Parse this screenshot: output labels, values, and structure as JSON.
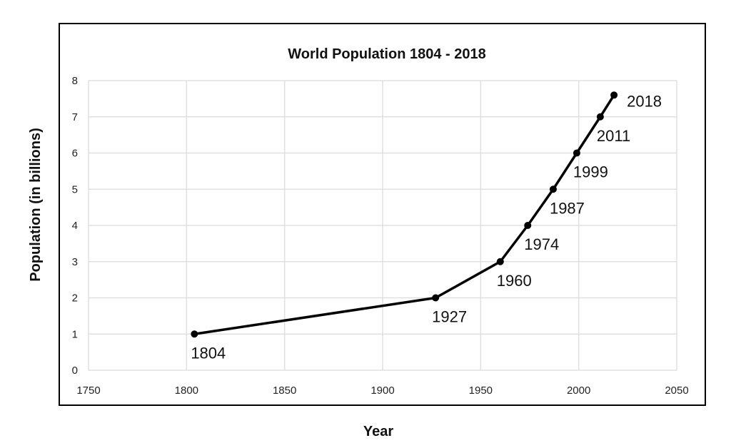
{
  "chart_data": {
    "type": "line",
    "title": "World Population 1804 - 2018",
    "xlabel": "Year",
    "ylabel": "Population (in billions)",
    "xlim": [
      1750,
      2050
    ],
    "ylim": [
      0,
      8
    ],
    "xticks": [
      1750,
      1800,
      1850,
      1900,
      1950,
      2000,
      2050
    ],
    "yticks": [
      0,
      1,
      2,
      3,
      4,
      5,
      6,
      7,
      8
    ],
    "grid": true,
    "x": [
      1804,
      1927,
      1960,
      1974,
      1987,
      1999,
      2011,
      2018
    ],
    "values": [
      1,
      2,
      3,
      4,
      5,
      6,
      7,
      7.6
    ],
    "point_labels": [
      "1804",
      "1927",
      "1960",
      "1974",
      "1987",
      "1999",
      "2011",
      "2018"
    ],
    "line_color": "#000000",
    "grid_color": "#e0e0e0"
  }
}
